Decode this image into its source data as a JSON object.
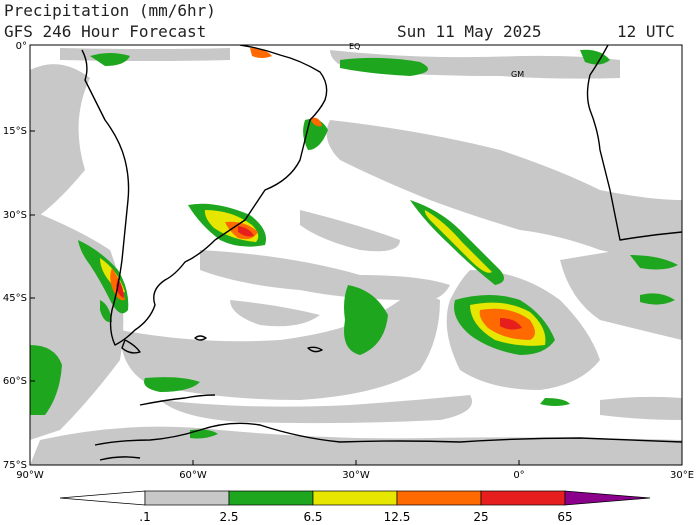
{
  "header": {
    "title": "Precipitation (mm/6hr)",
    "model": "GFS 246 Hour Forecast",
    "date": "Sun 11 May 2025",
    "time": "12 UTC"
  },
  "map": {
    "lat_labels": [
      "0°",
      "15°S",
      "30°S",
      "45°S",
      "60°S",
      "75°S"
    ],
    "lon_labels": [
      "90°W",
      "60°W",
      "30°W",
      "0°",
      "30°E"
    ],
    "markers": [
      "EQ",
      "GM"
    ]
  },
  "colorbar": {
    "labels": [
      ".1",
      "2.5",
      "6.5",
      "12.5",
      "25",
      "65"
    ],
    "colors": [
      "#ffffff",
      "#c8c8c8",
      "#1fa61f",
      "#e6e600",
      "#ff6a00",
      "#e61e1e",
      "#8b008b"
    ]
  }
}
